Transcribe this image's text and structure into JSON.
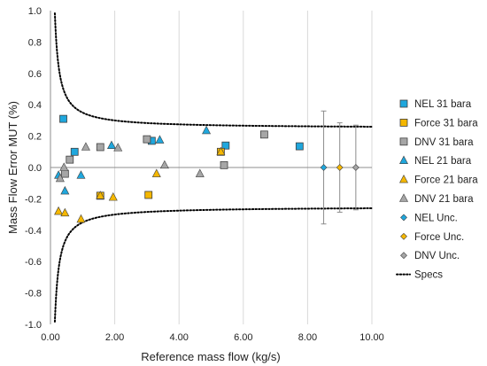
{
  "chart_data": {
    "type": "scatter",
    "title": "",
    "xlabel": "Reference mass flow (kg/s)",
    "ylabel": "Mass Flow Error MUT (%)",
    "xlim": [
      0,
      10
    ],
    "ylim": [
      -1,
      1
    ],
    "x_ticks": [
      "0.00",
      "2.00",
      "4.00",
      "6.00",
      "8.00",
      "10.00"
    ],
    "y_ticks": [
      "-1.0",
      "-0.8",
      "-0.6",
      "-0.4",
      "-0.2",
      "0.0",
      "0.2",
      "0.4",
      "0.6",
      "0.8",
      "1.0"
    ],
    "grid": "vertical",
    "legend_position": "right",
    "series": [
      {
        "name": "NEL 31 bara",
        "marker": "square",
        "color": "#1fa7dd",
        "points": [
          [
            0.4,
            0.31
          ],
          [
            0.75,
            0.1
          ],
          [
            3.15,
            0.17
          ],
          [
            5.45,
            0.14
          ],
          [
            7.75,
            0.135
          ]
        ]
      },
      {
        "name": "Force 31 bara",
        "marker": "square",
        "color": "#f5b700",
        "points": [
          [
            1.55,
            -0.18
          ],
          [
            3.05,
            -0.175
          ],
          [
            5.3,
            0.1
          ]
        ]
      },
      {
        "name": "DNV 31 bara",
        "marker": "square",
        "color": "#a6a6a6",
        "points": [
          [
            0.45,
            -0.04
          ],
          [
            0.6,
            0.05
          ],
          [
            1.55,
            0.13
          ],
          [
            3.0,
            0.18
          ],
          [
            5.4,
            0.015
          ],
          [
            6.65,
            0.21
          ]
        ]
      },
      {
        "name": "NEL 21 bara",
        "marker": "triangle",
        "color": "#1fa7dd",
        "points": [
          [
            0.25,
            -0.05
          ],
          [
            0.45,
            -0.15
          ],
          [
            0.95,
            -0.05
          ],
          [
            1.9,
            0.14
          ],
          [
            3.4,
            0.175
          ],
          [
            4.85,
            0.235
          ]
        ]
      },
      {
        "name": "Force 21 bara",
        "marker": "triangle",
        "color": "#f5b700",
        "points": [
          [
            0.25,
            -0.28
          ],
          [
            0.45,
            -0.29
          ],
          [
            0.95,
            -0.33
          ],
          [
            1.55,
            -0.18
          ],
          [
            1.95,
            -0.19
          ],
          [
            3.3,
            -0.04
          ],
          [
            5.3,
            0.1
          ]
        ]
      },
      {
        "name": "DNV 21 bara",
        "marker": "triangle",
        "color": "#a6a6a6",
        "points": [
          [
            0.3,
            -0.07
          ],
          [
            0.42,
            0.0
          ],
          [
            1.1,
            0.13
          ],
          [
            2.1,
            0.125
          ],
          [
            3.55,
            0.015
          ],
          [
            4.65,
            -0.04
          ]
        ]
      },
      {
        "name": "NEL Unc.",
        "marker": "diamond",
        "color": "#1fa7dd",
        "points": [
          [
            8.5,
            0.0
          ]
        ],
        "error": 0.36
      },
      {
        "name": "Force Unc.",
        "marker": "diamond",
        "color": "#f5b700",
        "points": [
          [
            9.0,
            0.0
          ]
        ],
        "error": 0.285
      },
      {
        "name": "DNV Unc.",
        "marker": "diamond",
        "color": "#a6a6a6",
        "points": [
          [
            9.5,
            0.0
          ]
        ],
        "error": 0.27
      }
    ],
    "spec_line": {
      "name": "Specs",
      "style": "dotted",
      "color": "#000000",
      "asymptote": 0.25,
      "coefficient": 0.1
    }
  }
}
